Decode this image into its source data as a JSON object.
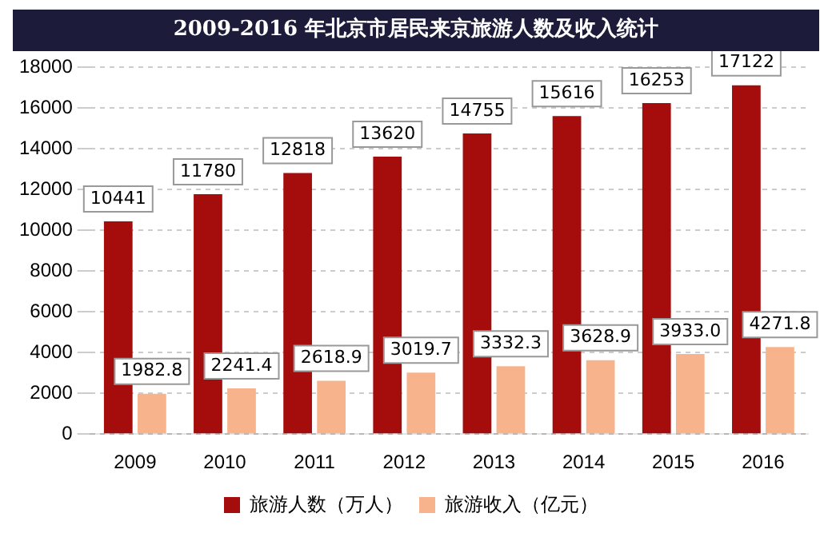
{
  "chart_data": {
    "type": "bar",
    "title": "2009-2016 年北京市居民来京旅游人数及收入统计",
    "categories": [
      "2009",
      "2010",
      "2011",
      "2012",
      "2013",
      "2014",
      "2015",
      "2016"
    ],
    "series": [
      {
        "name": "旅游人数（万人）",
        "color": "#a50d0d",
        "values": [
          10441,
          11780,
          12818,
          13620,
          14755,
          15616,
          16253,
          17122
        ],
        "value_labels": [
          "10441",
          "11780",
          "12818",
          "13620",
          "14755",
          "15616",
          "16253",
          "17122"
        ]
      },
      {
        "name": "旅游收入（亿元）",
        "color": "#f7b48c",
        "values": [
          1982.8,
          2241.4,
          2618.9,
          3019.7,
          3332.3,
          3628.9,
          3933.0,
          4271.8
        ],
        "value_labels": [
          "1982.8",
          "2241.4",
          "2618.9",
          "3019.7",
          "3332.3",
          "3628.9",
          "3933.0",
          "4271.8"
        ]
      }
    ],
    "ylim": [
      0,
      18000
    ],
    "yticks": [
      0,
      2000,
      4000,
      6000,
      8000,
      10000,
      12000,
      14000,
      16000,
      18000
    ],
    "grid": "y",
    "legend": "bottom"
  }
}
